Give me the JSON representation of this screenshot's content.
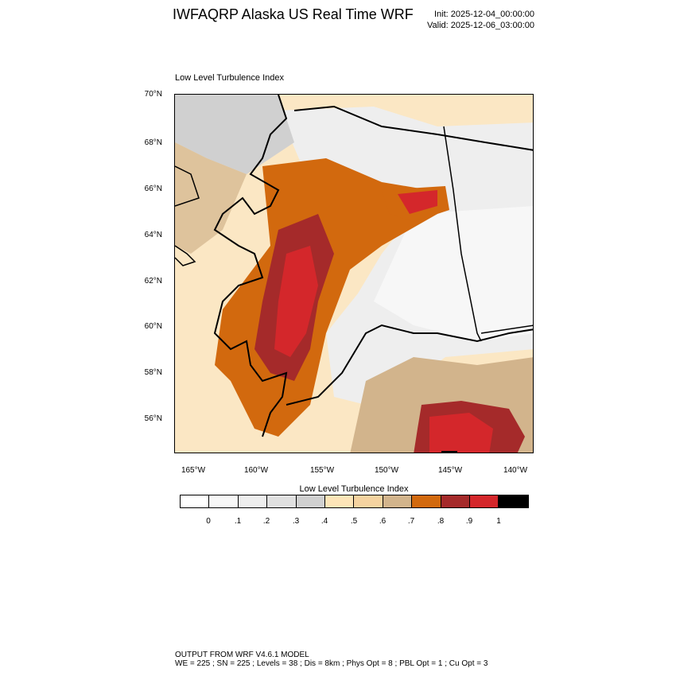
{
  "header": {
    "title": "IWFAQRP Alaska US Real Time WRF",
    "init": "Init: 2025-12-04_00:00:00",
    "valid": "Valid: 2025-12-06_03:00:00"
  },
  "map": {
    "plot_title": "Low Level Turbulence Index",
    "lat_labels": [
      "70°N",
      "68°N",
      "66°N",
      "64°N",
      "62°N",
      "60°N",
      "58°N",
      "56°N"
    ],
    "lon_labels": [
      "165°W",
      "160°W",
      "155°W",
      "150°W",
      "145°W",
      "140°W"
    ]
  },
  "colorbar": {
    "title": "Low Level Turbulence Index",
    "labels": [
      "0",
      ".1",
      ".2",
      ".3",
      ".4",
      ".5",
      ".6",
      ".7",
      ".8",
      ".9",
      "1"
    ],
    "colors": [
      "#ffffff",
      "#f7f7f7",
      "#eeeeee",
      "#e0e0e0",
      "#d0d0d0",
      "#fde5b8",
      "#f5d3a0",
      "#d2b48c",
      "#d2690e",
      "#a52a2a",
      "#d4272b",
      "#000000"
    ]
  },
  "footer": {
    "line1": "OUTPUT FROM WRF V4.6.1 MODEL",
    "line2": "WE = 225 ; SN = 225 ; Levels = 38 ; Dis = 8km ; Phys Opt = 8 ; PBL Opt = 1 ; Cu Opt = 3"
  }
}
